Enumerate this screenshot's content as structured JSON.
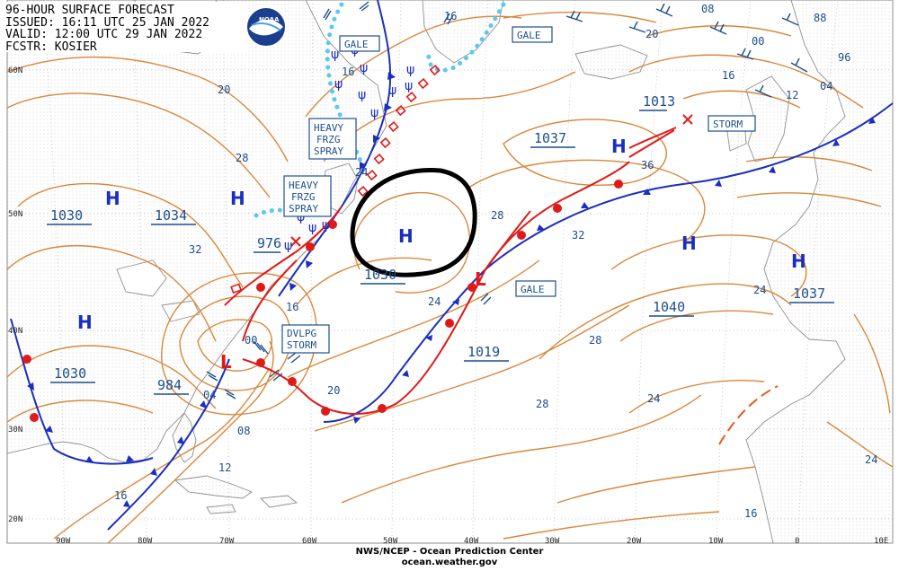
{
  "header": {
    "line1": "96-HOUR SURFACE FORECAST",
    "line2": "ISSUED: 16:11 UTC 25 JAN 2022",
    "line3": "VALID: 12:00 UTC 29 JAN 2022",
    "line4": "FCSTR: KOSIER"
  },
  "logo": {
    "text": "NOAA"
  },
  "footer": {
    "line1": "NWS/NCEP - Ocean Prediction Center",
    "line2": "ocean.weather.gov"
  },
  "lat_labels": [
    "60N",
    "50N",
    "40N",
    "30N",
    "20N"
  ],
  "lon_labels": [
    "90W",
    "80W",
    "70W",
    "60W",
    "50W",
    "40W",
    "30W",
    "20W",
    "10W",
    "0",
    "10E"
  ],
  "pressure_centers": [
    {
      "type": "H",
      "value": "1030"
    },
    {
      "type": "H",
      "value": "1034"
    },
    {
      "type": "H",
      "value": "1030"
    },
    {
      "type": "L",
      "value": "984"
    },
    {
      "type": "L",
      "value": "976"
    },
    {
      "type": "H",
      "value": "1037"
    },
    {
      "type": "H",
      "value": "1040"
    },
    {
      "type": "H",
      "value": "1037"
    },
    {
      "type": "L",
      "value": "1019"
    },
    {
      "type": "H",
      "value": "1030"
    },
    {
      "type": "L",
      "value": "1013"
    }
  ],
  "isobar_labels": [
    "16",
    "20",
    "28",
    "32",
    "24",
    "16",
    "20",
    "04",
    "00",
    "08",
    "12",
    "16",
    "24",
    "28",
    "32",
    "36",
    "28",
    "24",
    "28",
    "24",
    "16",
    "20",
    "00",
    "12",
    "96",
    "04",
    "88",
    "08",
    "16"
  ],
  "warnings": {
    "gale1": "GALE",
    "gale2": "GALE",
    "gale3": "GALE",
    "heavy_spray1": [
      "HEAVY",
      "FRZG",
      "SPRAY"
    ],
    "heavy_spray2": [
      "HEAVY",
      "FRZG",
      "SPRAY"
    ],
    "dvlpg_storm": [
      "DVLPG",
      "STORM"
    ],
    "storm": "STORM"
  },
  "colors": {
    "isobar": "#d9873a",
    "cold_front": "#1a2fbf",
    "warm_front": "#e01919",
    "freezing_spray": "#5bc8ef",
    "annotation_circle": "#000000",
    "label_text": "#1d4f8c"
  }
}
